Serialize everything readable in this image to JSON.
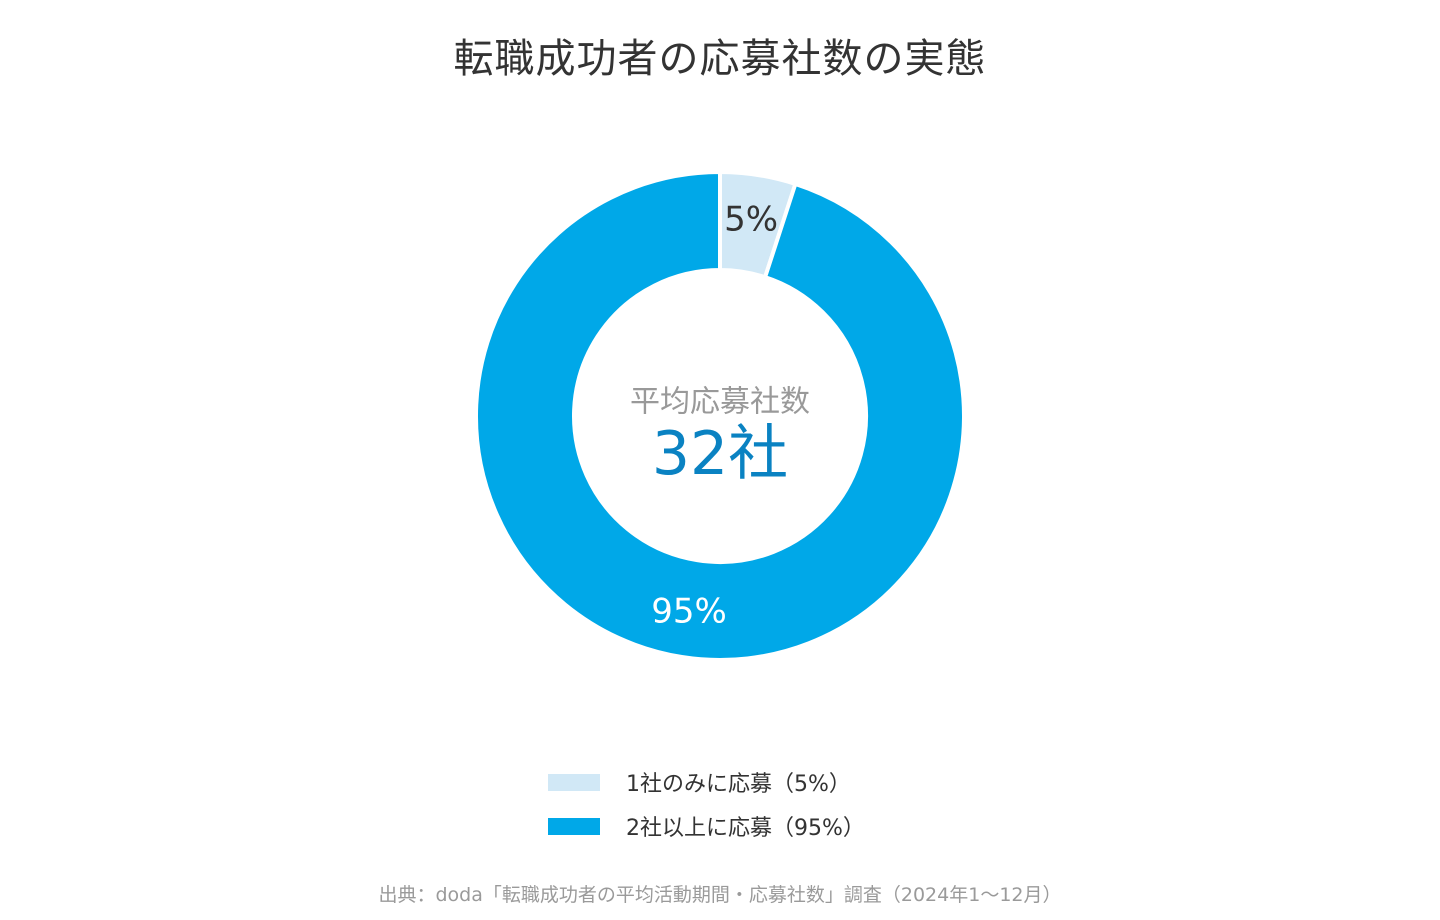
{
  "title": "転職成功者の応募社数の実態",
  "chart_data": {
    "type": "pie",
    "donut": true,
    "slices": [
      {
        "label": "1社のみに応募（5%）",
        "value": 5,
        "display": "5%",
        "color": "#d1e8f6",
        "text_color": "#333333"
      },
      {
        "label": "2社以上に応募（95%）",
        "value": 95,
        "display": "95%",
        "color": "#00a8e8",
        "text_color": "#ffffff"
      }
    ],
    "center_label": "平均応募社数",
    "center_value": "32社",
    "legend_position": "bottom"
  },
  "colors": {
    "center_label": "#999999",
    "center_value": "#0a82c2"
  },
  "source": "出典：doda「転職成功者の平均活動期間・応募社数」調査（2024年1〜12月）"
}
